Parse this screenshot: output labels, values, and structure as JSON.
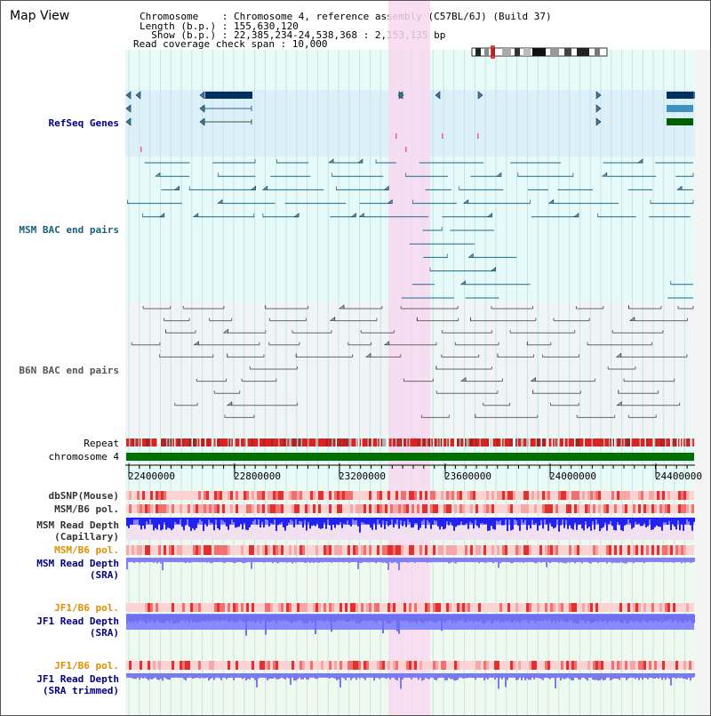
{
  "header": {
    "view_title": "Map View",
    "info_lines": [
      "Chromosome    : Chromosome 4, reference assembly (C57BL/6J) (Build 37)",
      "Length (b.p.) : 155,630,120",
      "  Show (b.p.) : 22,385,234-24,538,368 : 2,153,135 bp",
      "Read coverage check span : 10,000"
    ]
  },
  "tracks": {
    "refseq": "RefSeq Genes",
    "msm_bac": "MSM BAC end pairs",
    "b6n_bac": "B6N BAC end pairs",
    "repeat": "Repeat",
    "chromosome": "chromosome 4",
    "dbsnp": "dbSNP(Mouse)",
    "msm_b6_pol_1": "MSM/B6 pol.",
    "msm_read_depth_cap_1": "MSM Read Depth",
    "msm_read_depth_cap_2": "(Capillary)",
    "msm_b6_pol_2": "MSM/B6 pol.",
    "msm_read_depth_sra_1": "MSM Read Depth",
    "msm_read_depth_sra_2": "(SRA)",
    "jf1_b6_pol_1": "JF1/B6 pol.",
    "jf1_read_depth_sra_1": "JF1 Read Depth",
    "jf1_read_depth_sra_2": "(SRA)",
    "jf1_b6_pol_2": "JF1/B6 pol.",
    "jf1_read_depth_trim_1": "JF1 Read Depth",
    "jf1_read_depth_trim_2": "(SRA trimmed)"
  },
  "axis": {
    "ticks": [
      "22400000",
      "22800000",
      "23200000",
      "23600000",
      "24000000",
      "24400000"
    ],
    "start_bp": 22385234,
    "end_bp": 24538368
  },
  "colors": {
    "refseq_bg": "#dcf0fa",
    "msm_bg": "#e6fafa",
    "b6n_bg": "#f0f4f4",
    "highlight": "#f8d8f0",
    "chromosome_bar": "#007000",
    "repeat_red": "#dd2222",
    "depth_blue": "#2222ee",
    "depth_light_blue": "#7777ff"
  }
}
